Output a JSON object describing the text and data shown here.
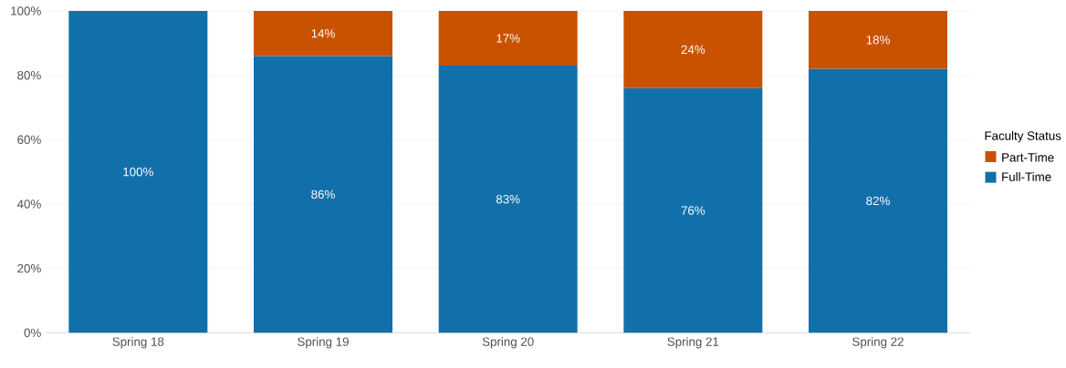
{
  "chart_data": {
    "type": "bar",
    "stacked": true,
    "legend_title": "Faculty Status",
    "categories": [
      "Spring 18",
      "Spring 19",
      "Spring 20",
      "Spring 21",
      "Spring 22"
    ],
    "series": [
      {
        "name": "Full-Time",
        "color": "#1170aa",
        "values": [
          100,
          86,
          83,
          76,
          82
        ],
        "value_labels": [
          "100%",
          "86%",
          "83%",
          "76%",
          "82%"
        ]
      },
      {
        "name": "Part-Time",
        "color": "#c85200",
        "values": [
          null,
          14,
          17,
          24,
          18
        ],
        "value_labels": [
          null,
          "14%",
          "17%",
          "24%",
          "18%"
        ]
      }
    ],
    "ylim": [
      0,
      100
    ],
    "yticks": [
      {
        "value": 0,
        "label": "0%"
      },
      {
        "value": 20,
        "label": "20%"
      },
      {
        "value": 40,
        "label": "40%"
      },
      {
        "value": 60,
        "label": "60%"
      },
      {
        "value": 80,
        "label": "80%"
      },
      {
        "value": 100,
        "label": "100%"
      }
    ],
    "grid": "y",
    "legend": "right"
  }
}
